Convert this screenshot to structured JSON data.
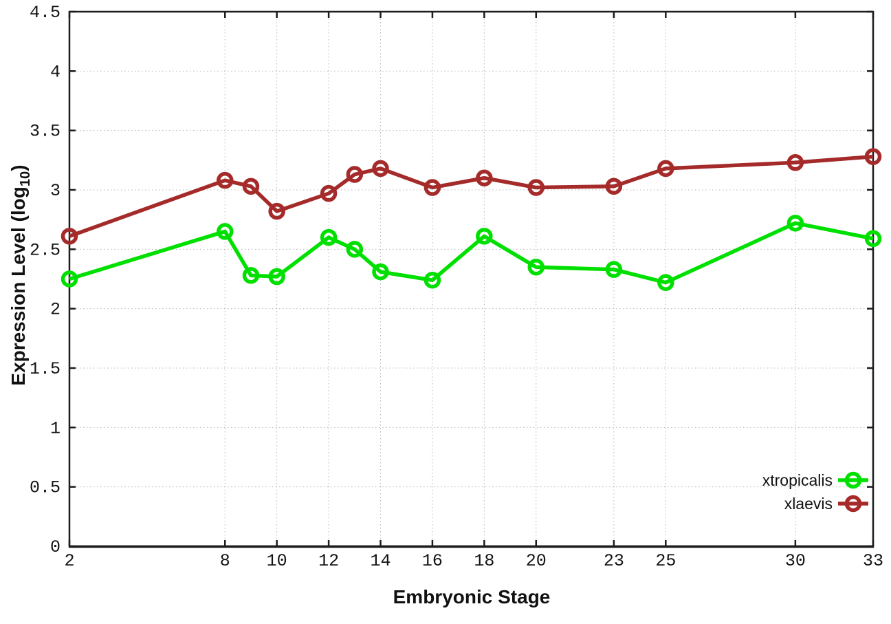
{
  "chart_data": {
    "type": "line",
    "title": "",
    "xlabel": "Embryonic Stage",
    "ylabel_main": "Expression Level (log",
    "ylabel_sub": "10",
    "ylabel_suffix": ")",
    "xlim": [
      2,
      33
    ],
    "ylim": [
      0,
      4.5
    ],
    "xticks": [
      2,
      8,
      10,
      12,
      14,
      16,
      18,
      20,
      23,
      25,
      30,
      33
    ],
    "yticks": [
      0,
      0.5,
      1,
      1.5,
      2,
      2.5,
      3,
      3.5,
      4,
      4.5
    ],
    "grid": true,
    "legend_position": "inside-bottom-right",
    "x": [
      2,
      8,
      9,
      10,
      12,
      13,
      14,
      16,
      18,
      20,
      23,
      25,
      30,
      33
    ],
    "series": [
      {
        "name": "xtropicalis",
        "color": "#00e000",
        "marker": "open-circle",
        "values": [
          2.25,
          2.65,
          2.28,
          2.27,
          2.6,
          2.5,
          2.31,
          2.24,
          2.61,
          2.35,
          2.33,
          2.22,
          2.72,
          2.59
        ]
      },
      {
        "name": "xlaevis",
        "color": "#a52a2a",
        "marker": "open-circle",
        "values": [
          2.61,
          3.08,
          3.03,
          2.82,
          2.97,
          3.13,
          3.18,
          3.02,
          3.1,
          3.02,
          3.03,
          3.18,
          3.23,
          3.28
        ]
      }
    ]
  },
  "colors": {
    "background": "#ffffff",
    "border": "#1c1c1c",
    "grid": "#b5b5b5",
    "text": "#111111"
  }
}
